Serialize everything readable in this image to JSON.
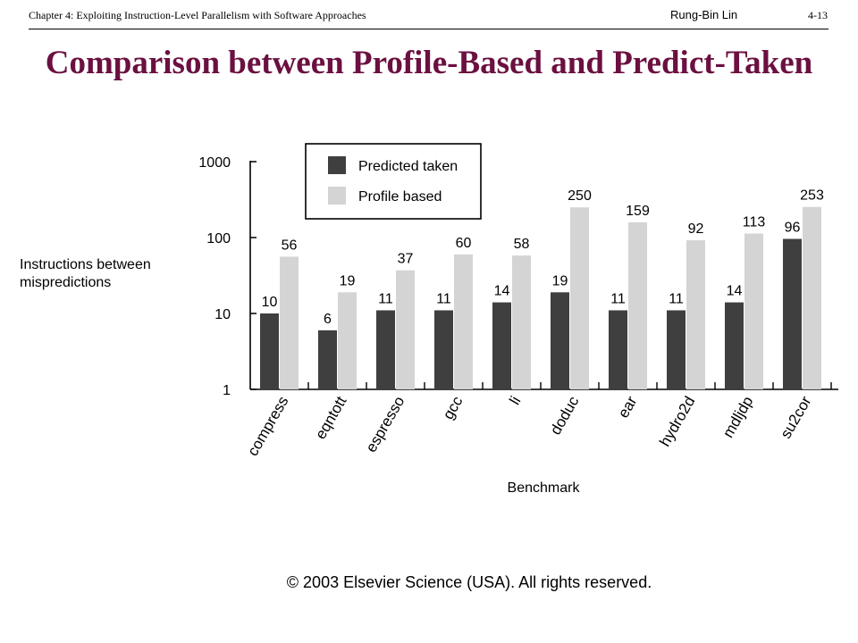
{
  "header": {
    "chapter": "Chapter 4: Exploiting Instruction-Level Parallelism with Software Approaches",
    "author": "Rung-Bin Lin",
    "page": "4-13"
  },
  "title": "Comparison between Profile-Based and Predict-Taken",
  "copyright": "© 2003 Elsevier Science (USA). All rights reserved.",
  "chart_data": {
    "type": "bar",
    "scale": "log",
    "ylim": [
      1,
      1000
    ],
    "yticks": [
      "1",
      "10",
      "100",
      "1000"
    ],
    "ylabel": [
      "Instructions between",
      "mispredictions"
    ],
    "xlabel": "Benchmark",
    "categories": [
      "compress",
      "eqntott",
      "espresso",
      "gcc",
      "li",
      "doduc",
      "ear",
      "hydro2d",
      "mdljdp",
      "su2cor"
    ],
    "series": [
      {
        "name": "Predicted taken",
        "color": "#3f3f3f",
        "values": [
          10,
          6,
          11,
          11,
          14,
          19,
          11,
          11,
          14,
          96
        ]
      },
      {
        "name": "Profile based",
        "color": "#d4d4d4",
        "values": [
          56,
          19,
          37,
          60,
          58,
          250,
          159,
          92,
          113,
          253
        ]
      }
    ],
    "legend_position": "top-center",
    "grid": false
  }
}
